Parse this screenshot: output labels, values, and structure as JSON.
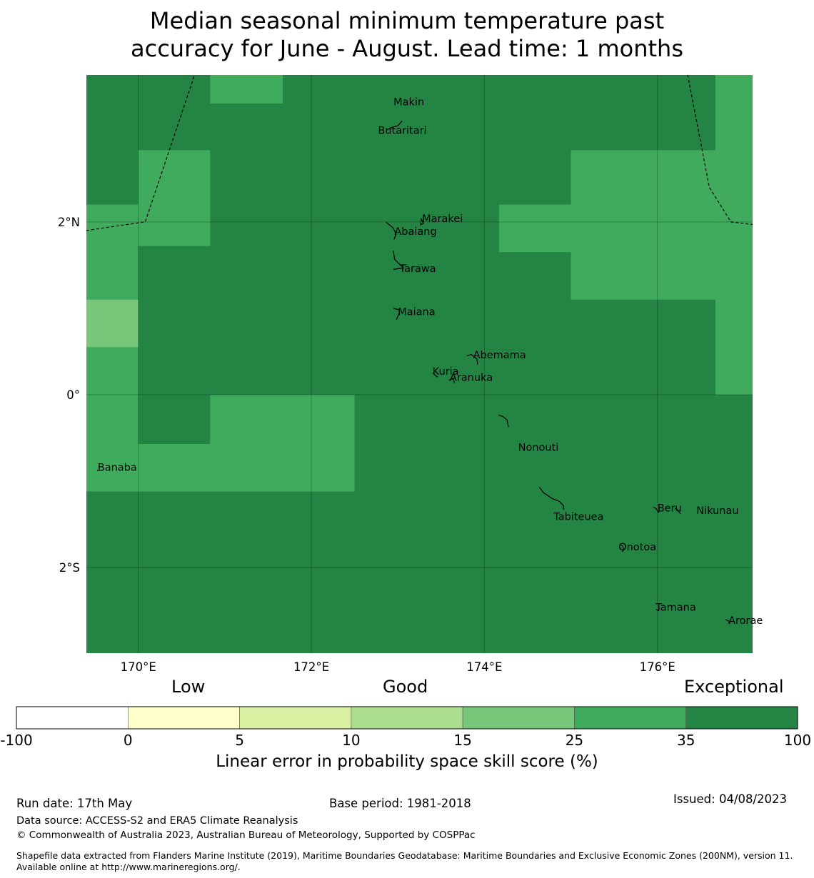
{
  "title_line1": "Median seasonal minimum temperature past",
  "title_line2": "accuracy for June - August. Lead time: 1 months",
  "map": {
    "extent": {
      "lon_min": 169.4,
      "lon_max": 177.1,
      "lat_min": -2.99,
      "lat_max": 3.7
    },
    "lon_ticks": [
      {
        "value": 170,
        "label": "170°E"
      },
      {
        "value": 172,
        "label": "172°E"
      },
      {
        "value": 174,
        "label": "174°E"
      },
      {
        "value": 176,
        "label": "176°E"
      }
    ],
    "lat_ticks": [
      {
        "value": 2,
        "label": "2°N"
      },
      {
        "value": 0,
        "label": "0°"
      },
      {
        "value": -2,
        "label": "2°S"
      }
    ],
    "grid_cells": [
      {
        "lon": [
          170.0,
          170.83
        ],
        "lat": [
          1.72,
          2.83
        ],
        "class": 5
      },
      {
        "lon": [
          170.83,
          171.67
        ],
        "lat": [
          3.37,
          3.7
        ],
        "class": 5
      },
      {
        "lon": [
          169.4,
          170.0
        ],
        "lat": [
          0.55,
          2.2
        ],
        "class": 5
      },
      {
        "lon": [
          169.4,
          170.0
        ],
        "lat": [
          0.55,
          1.1
        ],
        "class": 4
      },
      {
        "lon": [
          169.4,
          170.0
        ],
        "lat": [
          -1.12,
          0.55
        ],
        "class": 5
      },
      {
        "lon": [
          170.83,
          172.5
        ],
        "lat": [
          -1.12,
          0.0
        ],
        "class": 5
      },
      {
        "lon": [
          170.0,
          170.83
        ],
        "lat": [
          -1.12,
          -0.57
        ],
        "class": 5
      },
      {
        "lon": [
          174.17,
          175.0
        ],
        "lat": [
          1.65,
          2.2
        ],
        "class": 5
      },
      {
        "lon": [
          175.0,
          176.67
        ],
        "lat": [
          1.1,
          2.83
        ],
        "class": 5
      },
      {
        "lon": [
          176.67,
          177.1
        ],
        "lat": [
          1.1,
          3.7
        ],
        "class": 5
      },
      {
        "lon": [
          176.67,
          177.1
        ],
        "lat": [
          0.0,
          1.1
        ],
        "class": 5
      }
    ],
    "default_class": 6,
    "islands": [
      {
        "name": "Makin",
        "lon": 172.95,
        "lat": 3.35
      },
      {
        "name": "Butaritari",
        "lon": 172.77,
        "lat": 3.02
      },
      {
        "name": "Marakei",
        "lon": 173.28,
        "lat": 2.0
      },
      {
        "name": "Abaiang",
        "lon": 172.96,
        "lat": 1.85
      },
      {
        "name": "Tarawa",
        "lon": 173.02,
        "lat": 1.42
      },
      {
        "name": "Maiana",
        "lon": 173.0,
        "lat": 0.92
      },
      {
        "name": "Abemama",
        "lon": 173.87,
        "lat": 0.42
      },
      {
        "name": "Kuria",
        "lon": 173.4,
        "lat": 0.23
      },
      {
        "name": "Aranuka",
        "lon": 173.6,
        "lat": 0.16
      },
      {
        "name": "Nonouti",
        "lon": 174.39,
        "lat": -0.65
      },
      {
        "name": "Banaba",
        "lon": 169.53,
        "lat": -0.88
      },
      {
        "name": "Beru",
        "lon": 176.0,
        "lat": -1.35
      },
      {
        "name": "Nikunau",
        "lon": 176.45,
        "lat": -1.38
      },
      {
        "name": "Tabiteuea",
        "lon": 174.8,
        "lat": -1.45
      },
      {
        "name": "Onotoa",
        "lon": 175.55,
        "lat": -1.8
      },
      {
        "name": "Tamana",
        "lon": 175.98,
        "lat": -2.5
      },
      {
        "name": "Arorae",
        "lon": 176.82,
        "lat": -2.65
      }
    ],
    "eez_lines": [
      [
        [
          169.4,
          1.9
        ],
        [
          170.08,
          2.0
        ],
        [
          170.65,
          3.7
        ]
      ],
      [
        [
          176.35,
          3.7
        ],
        [
          176.6,
          2.4
        ],
        [
          176.85,
          2.0
        ],
        [
          177.1,
          1.97
        ]
      ]
    ]
  },
  "colorbar": {
    "categories": [
      "Low",
      "Good",
      "Exceptional"
    ],
    "boundaries": [
      "-100",
      "0",
      "5",
      "10",
      "15",
      "25",
      "35",
      "100"
    ],
    "colors": [
      "#ffffff",
      "#ffffcc",
      "#d9f0a3",
      "#addd8e",
      "#78c679",
      "#41ab5d",
      "#238443"
    ],
    "label": "Linear error in probability space skill score (%)"
  },
  "footer": {
    "run_date": "Run date: 17th May",
    "base_period": "Base period: 1981-2018",
    "issued": "Issued: 04/08/2023",
    "data_source": "Data source: ACCESS-S2 and ERA5 Climate Reanalysis",
    "copyright": "© Commonwealth of Australia 2023, Australian Bureau of Meteorology, Supported by COSPPac",
    "shapefile": "Shapefile data extracted from Flanders Marine Institute (2019), Maritime Boundaries Geodatabase: Maritime Boundaries and Exclusive Economic Zones (200NM), version 11. Available online at http://www.marineregions.org/."
  }
}
